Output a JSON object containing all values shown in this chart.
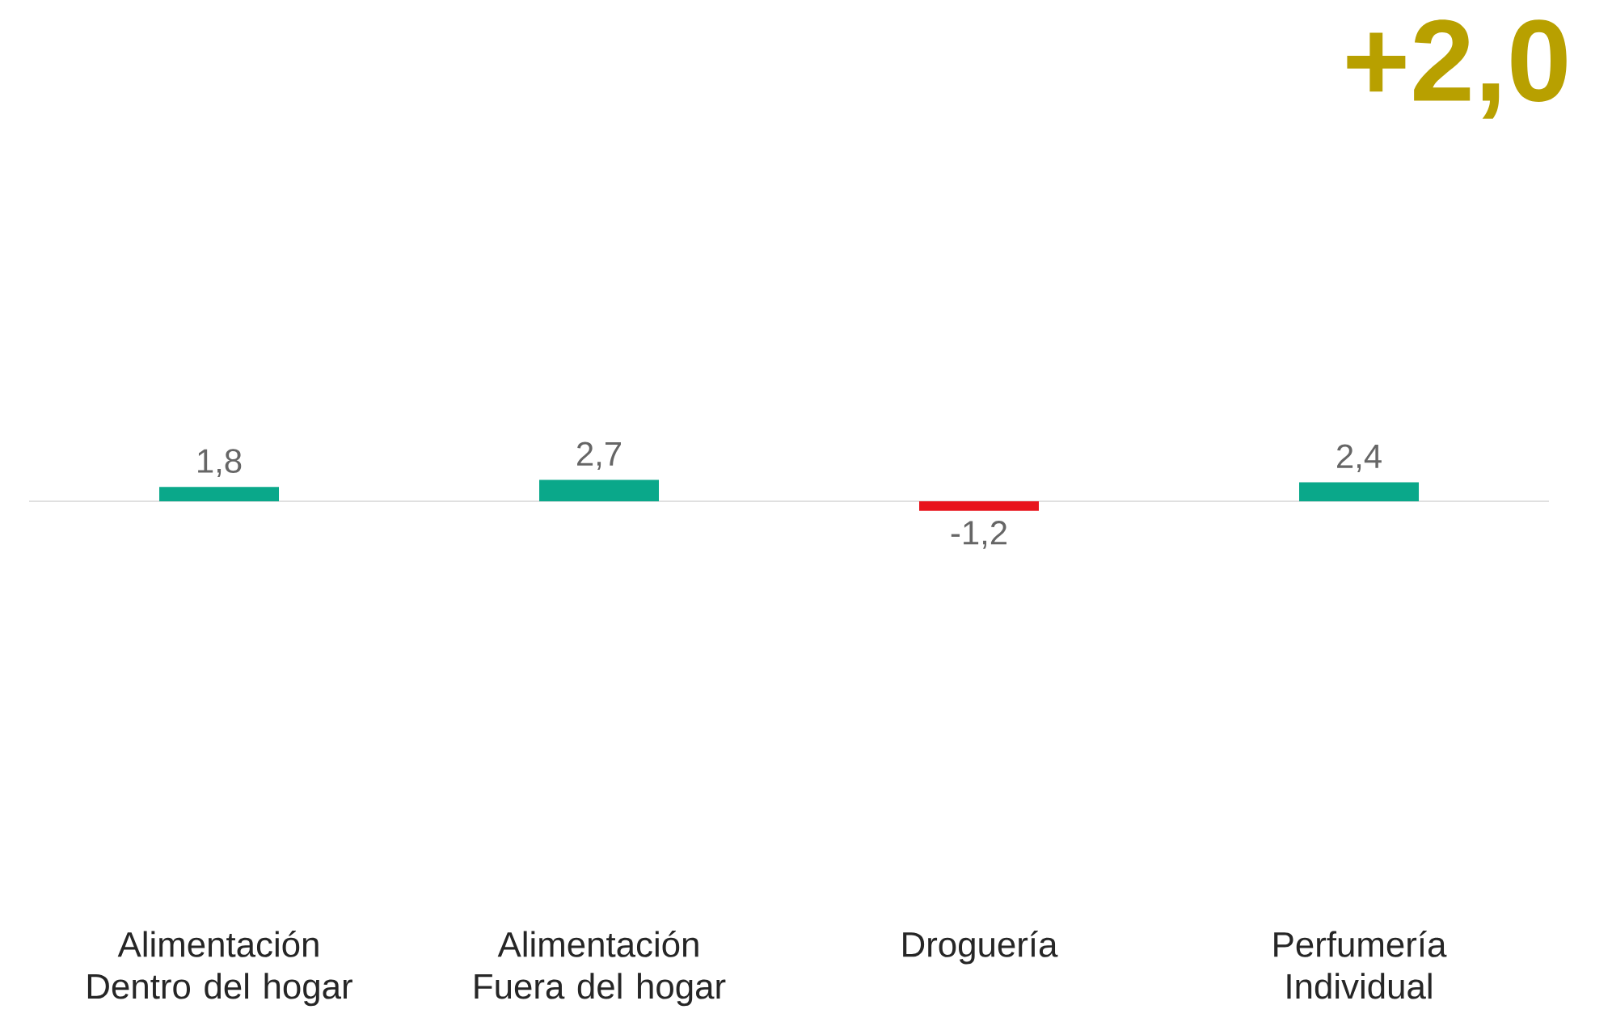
{
  "chart_data": {
    "type": "bar",
    "categories": [
      "Alimentación Dentro del hogar",
      "Alimentación Fuera del hogar",
      "Droguería",
      "Perfumería Individual"
    ],
    "values": [
      1.8,
      2.7,
      -1.2,
      2.4
    ],
    "value_labels": [
      "1,8",
      "2,7",
      "-1,2",
      "2,4"
    ],
    "colors": [
      "#0aa88a",
      "#0aa88a",
      "#e8141c",
      "#0aa88a"
    ],
    "annotations": [
      "+2,0"
    ]
  }
}
